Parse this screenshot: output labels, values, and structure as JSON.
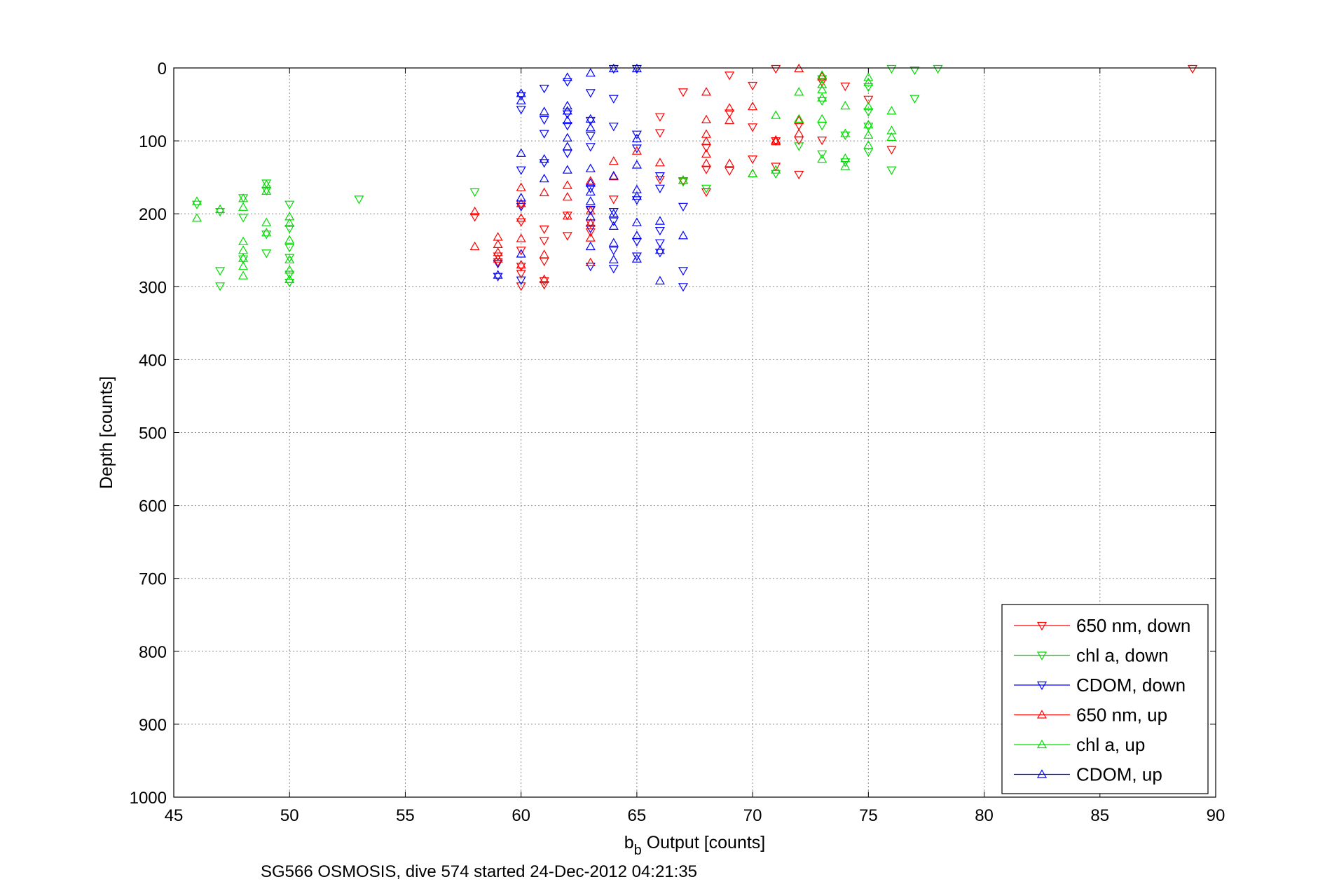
{
  "caption": "SG566 OSMOSIS, dive 574 started 24-Dec-2012 04:21:35",
  "chart_data": {
    "type": "scatter",
    "title": "",
    "xlabel_main": "b",
    "xlabel_sub": "b",
    "xlabel_rest": " Output [counts]",
    "ylabel": "Depth [counts]",
    "xlim": [
      45,
      90
    ],
    "ylim": [
      0,
      1000
    ],
    "y_reversed": true,
    "xticks": [
      45,
      50,
      55,
      60,
      65,
      70,
      75,
      80,
      85,
      90
    ],
    "yticks": [
      0,
      100,
      200,
      300,
      400,
      500,
      600,
      700,
      800,
      900,
      1000
    ],
    "grid": true,
    "legend_position": "bottom-right",
    "series": [
      {
        "name": "650 nm, down",
        "color": "#ff0000",
        "marker": "triangle-down",
        "points": [
          [
            89,
            1
          ],
          [
            71,
            1
          ],
          [
            67,
            33
          ],
          [
            69,
            10
          ],
          [
            70,
            24
          ],
          [
            66,
            67
          ],
          [
            66,
            89
          ],
          [
            68,
            109
          ],
          [
            69,
            62
          ],
          [
            70,
            81
          ],
          [
            71,
            100
          ],
          [
            71,
            135
          ],
          [
            72,
            146
          ],
          [
            68,
            139
          ],
          [
            68,
            170
          ],
          [
            67,
            155
          ],
          [
            69,
            141
          ],
          [
            70,
            125
          ],
          [
            64,
            180
          ],
          [
            63,
            195
          ],
          [
            62,
            202
          ],
          [
            62,
            230
          ],
          [
            61,
            221
          ],
          [
            61,
            237
          ],
          [
            61,
            265
          ],
          [
            61,
            292
          ],
          [
            61,
            297
          ],
          [
            60,
            299
          ],
          [
            60,
            272
          ],
          [
            60,
            282
          ],
          [
            60,
            250
          ],
          [
            60,
            211
          ],
          [
            60,
            187
          ],
          [
            59,
            258
          ],
          [
            59,
            266
          ],
          [
            58,
            204
          ],
          [
            63,
            213
          ],
          [
            63,
            225
          ],
          [
            72,
            99
          ],
          [
            73,
            99
          ],
          [
            74,
            25
          ],
          [
            75,
            43
          ],
          [
            76,
            112
          ],
          [
            66,
            153
          ],
          [
            72,
            79
          ],
          [
            73,
            19
          ]
        ]
      },
      {
        "name": "chl a, down",
        "color": "#00dd00",
        "marker": "triangle-down",
        "points": [
          [
            78,
            1
          ],
          [
            77,
            3
          ],
          [
            76,
            1
          ],
          [
            77,
            42
          ],
          [
            75,
            26
          ],
          [
            75,
            60
          ],
          [
            76,
            140
          ],
          [
            75,
            115
          ],
          [
            75,
            80
          ],
          [
            74,
            92
          ],
          [
            74,
            129
          ],
          [
            73,
            118
          ],
          [
            73,
            79
          ],
          [
            73,
            45
          ],
          [
            73,
            15
          ],
          [
            72,
            107
          ],
          [
            71,
            145
          ],
          [
            68,
            165
          ],
          [
            67,
            156
          ],
          [
            58,
            170
          ],
          [
            53,
            180
          ],
          [
            50,
            187
          ],
          [
            50,
            220
          ],
          [
            50,
            246
          ],
          [
            50,
            260
          ],
          [
            50,
            283
          ],
          [
            50,
            294
          ],
          [
            49,
            254
          ],
          [
            49,
            228
          ],
          [
            49,
            168
          ],
          [
            49,
            158
          ],
          [
            48,
            205
          ],
          [
            48,
            262
          ],
          [
            47,
            278
          ],
          [
            47,
            299
          ],
          [
            47,
            197
          ],
          [
            48,
            178
          ],
          [
            46,
            187
          ]
        ]
      },
      {
        "name": "CDOM, down",
        "color": "#0000ff",
        "marker": "triangle-down",
        "points": [
          [
            64,
            1
          ],
          [
            65,
            1
          ],
          [
            64,
            42
          ],
          [
            64,
            80
          ],
          [
            63,
            34
          ],
          [
            63,
            72
          ],
          [
            62,
            19
          ],
          [
            62,
            63
          ],
          [
            62,
            117
          ],
          [
            61,
            71
          ],
          [
            61,
            90
          ],
          [
            61,
            130
          ],
          [
            60,
            38
          ],
          [
            60,
            57
          ],
          [
            60,
            140
          ],
          [
            60,
            190
          ],
          [
            60,
            291
          ],
          [
            59,
            268
          ],
          [
            59,
            286
          ],
          [
            61,
            28
          ],
          [
            62,
            79
          ],
          [
            63,
            93
          ],
          [
            63,
            108
          ],
          [
            63,
            165
          ],
          [
            63,
            194
          ],
          [
            63,
            220
          ],
          [
            63,
            272
          ],
          [
            64,
            197
          ],
          [
            64,
            210
          ],
          [
            64,
            250
          ],
          [
            64,
            275
          ],
          [
            65,
            91
          ],
          [
            65,
            110
          ],
          [
            65,
            181
          ],
          [
            65,
            238
          ],
          [
            65,
            258
          ],
          [
            66,
            148
          ],
          [
            66,
            165
          ],
          [
            66,
            223
          ],
          [
            66,
            240
          ],
          [
            66,
            253
          ],
          [
            67,
            190
          ],
          [
            67,
            278
          ],
          [
            67,
            300
          ]
        ]
      },
      {
        "name": "650 nm, up",
        "color": "#ff0000",
        "marker": "triangle-up",
        "points": [
          [
            72,
            1
          ],
          [
            73,
            12
          ],
          [
            71,
            101
          ],
          [
            70,
            53
          ],
          [
            70,
            145
          ],
          [
            69,
            55
          ],
          [
            69,
            72
          ],
          [
            69,
            131
          ],
          [
            68,
            33
          ],
          [
            68,
            71
          ],
          [
            68,
            91
          ],
          [
            68,
            101
          ],
          [
            68,
            118
          ],
          [
            68,
            131
          ],
          [
            67,
            154
          ],
          [
            66,
            130
          ],
          [
            65,
            114
          ],
          [
            64,
            128
          ],
          [
            64,
            149
          ],
          [
            63,
            155
          ],
          [
            63,
            196
          ],
          [
            63,
            213
          ],
          [
            63,
            233
          ],
          [
            63,
            267
          ],
          [
            62,
            161
          ],
          [
            62,
            177
          ],
          [
            62,
            203
          ],
          [
            61,
            171
          ],
          [
            61,
            256
          ],
          [
            61,
            290
          ],
          [
            60,
            164
          ],
          [
            60,
            186
          ],
          [
            60,
            206
          ],
          [
            60,
            234
          ],
          [
            60,
            270
          ],
          [
            59,
            232
          ],
          [
            59,
            242
          ],
          [
            59,
            253
          ],
          [
            59,
            262
          ],
          [
            58,
            197
          ],
          [
            58,
            245
          ],
          [
            71,
            99
          ],
          [
            72,
            72
          ],
          [
            72,
            90
          ]
        ]
      },
      {
        "name": "chl a, up",
        "color": "#00dd00",
        "marker": "triangle-up",
        "points": [
          [
            75,
            13
          ],
          [
            75,
            20
          ],
          [
            73,
            10
          ],
          [
            73,
            23
          ],
          [
            73,
            30
          ],
          [
            73,
            41
          ],
          [
            73,
            70
          ],
          [
            73,
            125
          ],
          [
            72,
            33
          ],
          [
            72,
            70
          ],
          [
            71,
            65
          ],
          [
            70,
            145
          ],
          [
            71,
            140
          ],
          [
            74,
            52
          ],
          [
            74,
            90
          ],
          [
            74,
            124
          ],
          [
            74,
            135
          ],
          [
            75,
            53
          ],
          [
            75,
            78
          ],
          [
            75,
            92
          ],
          [
            75,
            106
          ],
          [
            76,
            59
          ],
          [
            76,
            86
          ],
          [
            76,
            95
          ],
          [
            67,
            154
          ],
          [
            49,
            160
          ],
          [
            49,
            169
          ],
          [
            49,
            226
          ],
          [
            49,
            212
          ],
          [
            48,
            179
          ],
          [
            48,
            191
          ],
          [
            48,
            238
          ],
          [
            48,
            250
          ],
          [
            48,
            261
          ],
          [
            48,
            272
          ],
          [
            48,
            285
          ],
          [
            47,
            194
          ],
          [
            46,
            183
          ],
          [
            46,
            206
          ],
          [
            50,
            204
          ],
          [
            50,
            213
          ],
          [
            50,
            236
          ],
          [
            50,
            263
          ],
          [
            50,
            277
          ],
          [
            50,
            290
          ]
        ]
      },
      {
        "name": "CDOM, up",
        "color": "#0000ff",
        "marker": "triangle-up",
        "points": [
          [
            64,
            1
          ],
          [
            65,
            1
          ],
          [
            63,
            7
          ],
          [
            62,
            13
          ],
          [
            62,
            52
          ],
          [
            62,
            59
          ],
          [
            62,
            72
          ],
          [
            62,
            96
          ],
          [
            62,
            108
          ],
          [
            62,
            140
          ],
          [
            61,
            60
          ],
          [
            61,
            125
          ],
          [
            61,
            152
          ],
          [
            60,
            35
          ],
          [
            60,
            45
          ],
          [
            60,
            117
          ],
          [
            60,
            178
          ],
          [
            60,
            255
          ],
          [
            59,
            284
          ],
          [
            63,
            70
          ],
          [
            63,
            82
          ],
          [
            63,
            138
          ],
          [
            63,
            158
          ],
          [
            63,
            170
          ],
          [
            63,
            183
          ],
          [
            63,
            204
          ],
          [
            63,
            245
          ],
          [
            64,
            148
          ],
          [
            64,
            200
          ],
          [
            64,
            217
          ],
          [
            64,
            240
          ],
          [
            64,
            263
          ],
          [
            65,
            97
          ],
          [
            65,
            133
          ],
          [
            65,
            167
          ],
          [
            65,
            176
          ],
          [
            65,
            212
          ],
          [
            65,
            230
          ],
          [
            65,
            262
          ],
          [
            66,
            210
          ],
          [
            66,
            250
          ],
          [
            66,
            292
          ],
          [
            67,
            230
          ]
        ]
      }
    ]
  }
}
